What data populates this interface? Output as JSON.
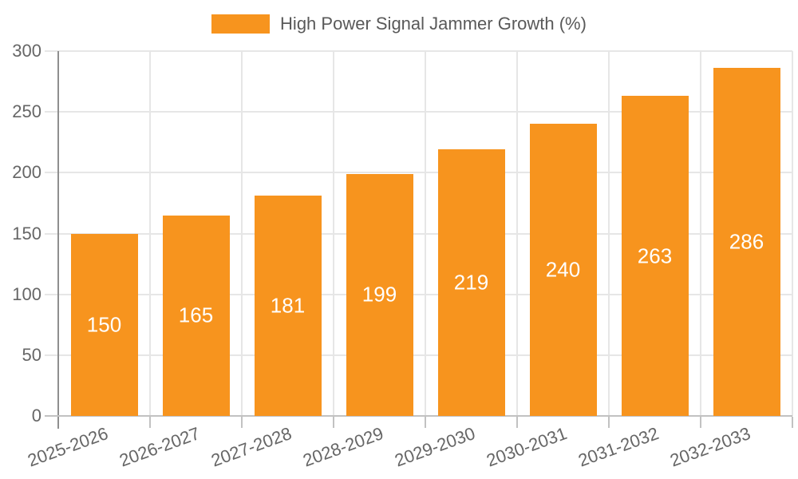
{
  "legend": {
    "label": "High Power Signal Jammer Growth (%)"
  },
  "colors": {
    "bar": "#f7941e",
    "bar_label": "#ffffff",
    "axis_text": "#666666",
    "legend_text": "#595959",
    "grid": "#e6e6e6",
    "y_axis_line": "#8f8f8f",
    "x_axis_line": "#c2c2c2",
    "background": "#ffffff"
  },
  "chart_data": {
    "type": "bar",
    "title": "High Power Signal Jammer Growth (%)",
    "categories": [
      "2025-2026",
      "2026-2027",
      "2027-2028",
      "2028-2029",
      "2029-2030",
      "2030-2031",
      "2031-2032",
      "2032-2033"
    ],
    "values": [
      150,
      165,
      181,
      199,
      219,
      240,
      263,
      286
    ],
    "series_name": "High Power Signal Jammer Growth (%)",
    "xlabel": "",
    "ylabel": "",
    "ylim": [
      0,
      300
    ],
    "yticks": [
      0,
      50,
      100,
      150,
      200,
      250,
      300
    ],
    "grid": true,
    "legend_position": "top-center",
    "data_labels": "inside-center-white"
  }
}
